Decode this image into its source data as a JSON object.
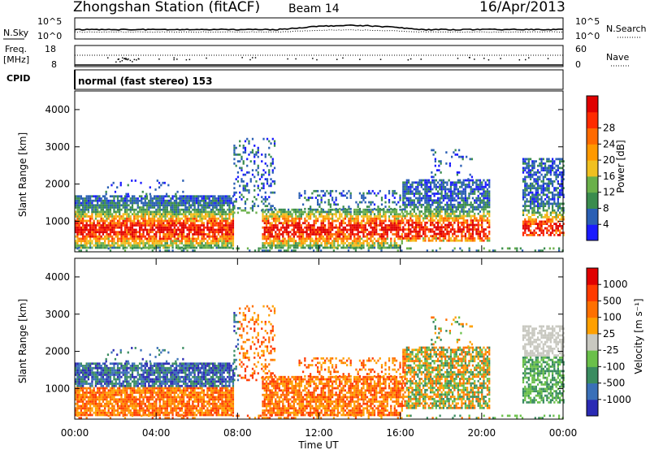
{
  "header": {
    "station": "Zhongshan Station (fitACF)",
    "beam": "Beam 14",
    "date": "16/Apr/2013"
  },
  "top_panels": {
    "noise": {
      "left_label": "N.Sky",
      "right_label": "N.Search",
      "ytick_top": "10^5",
      "ytick_bottom": "10^0"
    },
    "freq": {
      "left_label_1": "Freq.",
      "left_label_2": "[MHz]",
      "ytick_top": "18",
      "ytick_bottom": "8",
      "right_label": "Nave",
      "right_tick_top": "60",
      "right_tick_bottom": "0"
    },
    "cpid": {
      "label": "CPID",
      "value": "normal (fast stereo) 153"
    }
  },
  "chart_data": [
    {
      "type": "heatmap",
      "quantity": "Power",
      "ylabel": "Slant Range [km]",
      "xlabel": "",
      "ylim": [
        180,
        4500
      ],
      "yticks": [
        1000,
        2000,
        3000,
        4000
      ],
      "colorbar": {
        "label": "Power [dB]",
        "ticks": [
          "4",
          "8",
          "12",
          "16",
          "20",
          "24",
          "28"
        ],
        "colors": [
          "#1a1aff",
          "#2a5fb4",
          "#3a8c4e",
          "#6ab04a",
          "#f0c020",
          "#ff9900",
          "#ff6a00",
          "#ff2b00",
          "#e00000"
        ]
      }
    },
    {
      "type": "heatmap",
      "quantity": "Velocity",
      "ylabel": "Slant Range [km]",
      "xlabel": "Time UT",
      "ylim": [
        180,
        4500
      ],
      "yticks": [
        1000,
        2000,
        3000,
        4000
      ],
      "xticks": [
        "00:00",
        "04:00",
        "08:00",
        "12:00",
        "16:00",
        "20:00",
        "00:00"
      ],
      "colorbar": {
        "label": "Velocity [m s⁻¹]",
        "ticks": [
          "1000",
          "500",
          "100",
          "25",
          "-25",
          "-100",
          "-500",
          "-1000"
        ],
        "colors": [
          "#2a2ab4",
          "#3a70b8",
          "#3a8c60",
          "#6ac04a",
          "#c8c8c0",
          "#ffa000",
          "#ff7000",
          "#ff3a00",
          "#e00000"
        ]
      }
    }
  ]
}
